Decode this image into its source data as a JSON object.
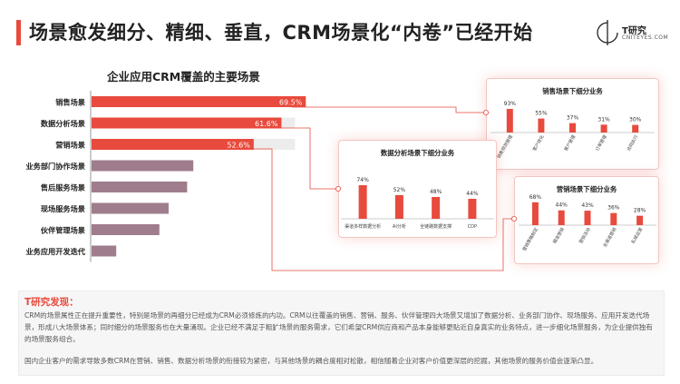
{
  "page": {
    "title": "场景愈发细分、精细、垂直，CRM场景化“内卷”已经开始"
  },
  "logo": {
    "name": "T研究",
    "sub": "CNITEYES.COM"
  },
  "colors": {
    "accent": "#e84a3d",
    "bar_fill": "#9f7d8c",
    "bar_track": "#ececec",
    "pink_border": "#f3c6c1"
  },
  "chart_data": [
    {
      "type": "bar",
      "orientation": "horizontal",
      "title": "企业应用CRM覆盖的主要场景",
      "categories": [
        "销售场景",
        "数据分析场景",
        "营销场景",
        "业务部门协作场景",
        "售后服务场景",
        "现场服务场景",
        "伙伴管理场景",
        "业务应用开发迭代"
      ],
      "values": [
        69.5,
        61.6,
        52.6,
        33.0,
        31.0,
        25.0,
        22.0,
        8.0
      ],
      "data_labels": [
        "69.5%",
        "61.6%",
        "52.6%",
        "",
        "",
        "",
        "",
        ""
      ],
      "highlighted": [
        true,
        true,
        true,
        false,
        false,
        false,
        false,
        false
      ],
      "xlim": [
        0,
        100
      ]
    },
    {
      "type": "bar",
      "title": "销售场景下细分业务",
      "categories": [
        "销售预测管理",
        "客户转化",
        "客户管理",
        "订单管理",
        "合同执行"
      ],
      "values": [
        93,
        55,
        37,
        31,
        30
      ],
      "data_labels": [
        "93%",
        "55%",
        "37%",
        "31%",
        "30%"
      ],
      "ylim": [
        0,
        100
      ]
    },
    {
      "type": "bar",
      "title": "数据分析场景下细分业务",
      "categories": [
        "渠道多样数据分析",
        "AI分析",
        "全链路数据支撑",
        "CDP"
      ],
      "values": [
        74,
        52,
        48,
        44
      ],
      "data_labels": [
        "74%",
        "52%",
        "48%",
        "44%"
      ],
      "ylim": [
        0,
        100
      ]
    },
    {
      "type": "bar",
      "title": "营销场景下细分业务",
      "categories": [
        "营销策略制定",
        "精准营销",
        "营销活动",
        "全渠道营销",
        "私域运营"
      ],
      "values": [
        68,
        44,
        43,
        36,
        28
      ],
      "data_labels": [
        "68%",
        "44%",
        "43%",
        "36%",
        "28%"
      ],
      "ylim": [
        0,
        100
      ]
    }
  ],
  "findings": {
    "title": "T研究发现：",
    "p1": "CRM的场景属性正在提升重要性，特别是场景的再细分已经成为CRM必须修炼的内功。CRM以往覆盖的销售、营销、服务、伙伴管理四大场景又增加了数据分析、业务部门协作、现场服务、应用开发迭代场景，形成八大场景体系；同时细分的场景服务也在大量涌现。企业已经不满足于粗犷场景的服务需求，它们希望CRM供应商和产品本身能够更贴近自身真实的业务特点，进一步细化场景服务，为企业提供独有的场景服务组合。",
    "p2": "国内企业客户的需求导致多数CRM在营销、销售、数据分析场景的衔接较为紧密，与其他场景的耦合度相对松散，相信随着企业对客户价值更深层的挖掘，其他场景的服务价值会逐渐凸显。"
  }
}
